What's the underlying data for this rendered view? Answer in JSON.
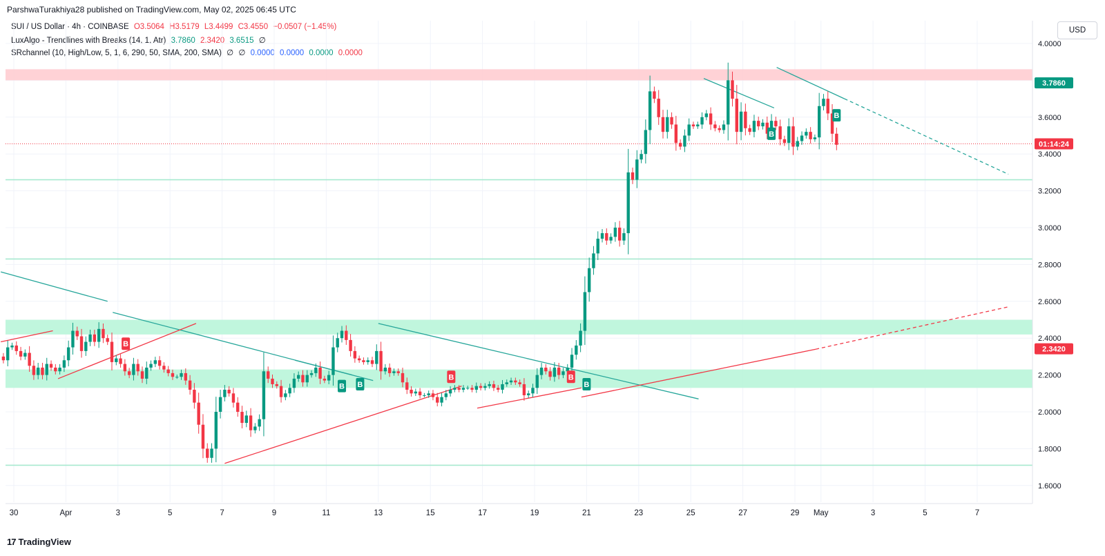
{
  "header": {
    "published": "ParshwaTurakhiya28 published on TradingView.com, May 02, 2025 06:45 UTC"
  },
  "legend": {
    "symbol": "SUI / US Dollar · 4h · COINBASE",
    "o": "O3.5064",
    "h": "H3.5179",
    "l": "L3.4499",
    "c": "C3.4550",
    "chg": "−0.0507 (−1.45%)",
    "ind1_name": "LuxAlgo - Trendlines with Breaks (14, 1, Atr)",
    "ind1_v1": "3.7860",
    "ind1_v2": "2.3420",
    "ind1_v3": "3.6515",
    "ind1_v4": "∅",
    "ind2_name": "SRchannel (10, High/Low, 5, 1, 6, 290, 50, SMA, 200, SMA)",
    "ind2_v1": "∅",
    "ind2_v2": "∅",
    "ind2_v3": "0.0000",
    "ind2_v4": "0.0000",
    "ind2_v5": "0.0000",
    "ind2_v6": "0.0000"
  },
  "toolbar": {
    "currency": "USD"
  },
  "footer": {
    "brand": "TradingView",
    "icon": "tradingview-logo-icon"
  },
  "colors": {
    "up": "#089981",
    "down": "#f23645",
    "zone_red": "#ffcdd2",
    "zone_green": "#b9f5d9",
    "line_green": "#a6e9cf"
  },
  "chart_data": {
    "type": "candlestick",
    "title": "SUI / US Dollar · 4h · COINBASE",
    "yrange": [
      1.5,
      4.05
    ],
    "y_ticks": [
      "4.0000",
      "3.8000",
      "3.6000",
      "3.4000",
      "3.2000",
      "3.0000",
      "2.8000",
      "2.6000",
      "2.4000",
      "2.2000",
      "2.0000",
      "1.8000",
      "1.6000"
    ],
    "x_ticks": [
      {
        "label": "30",
        "day": 30
      },
      {
        "label": "Apr",
        "day": 32
      },
      {
        "label": "3",
        "day": 34
      },
      {
        "label": "5",
        "day": 36
      },
      {
        "label": "7",
        "day": 38
      },
      {
        "label": "9",
        "day": 40
      },
      {
        "label": "11",
        "day": 42
      },
      {
        "label": "13",
        "day": 44
      },
      {
        "label": "15",
        "day": 46
      },
      {
        "label": "17",
        "day": 48
      },
      {
        "label": "19",
        "day": 50
      },
      {
        "label": "21",
        "day": 52
      },
      {
        "label": "23",
        "day": 54
      },
      {
        "label": "25",
        "day": 56
      },
      {
        "label": "27",
        "day": 58
      },
      {
        "label": "29",
        "day": 60
      },
      {
        "label": "May",
        "day": 61
      },
      {
        "label": "3",
        "day": 63
      },
      {
        "label": "5",
        "day": 65
      },
      {
        "label": "7",
        "day": 67
      }
    ],
    "x_axis_note": "Mar 30 = day 30, Apr 1 = day 32 (day 31 = Mar 31)",
    "price_tags": [
      {
        "value": 3.786,
        "text": "3.7860",
        "color": "#089981"
      },
      {
        "value": 3.455,
        "text": "01:14:24",
        "color": "#f23645"
      },
      {
        "value": 2.342,
        "text": "2.3420",
        "color": "#f23645"
      }
    ],
    "last_price": 3.455,
    "zones": [
      {
        "from": 3.8,
        "to": 3.86,
        "color": "#ffcdd2"
      },
      {
        "from": 2.42,
        "to": 2.5,
        "color": "#b9f5d9"
      },
      {
        "from": 2.13,
        "to": 2.23,
        "color": "#b9f5d9"
      }
    ],
    "support_lines": [
      3.26,
      2.83,
      1.71
    ],
    "trendlines": [
      {
        "d1": 29.5,
        "p1": 2.76,
        "d2": 33.6,
        "p2": 2.6,
        "color": "#26a69a",
        "dash": false
      },
      {
        "d1": 33.8,
        "p1": 2.54,
        "d2": 43.8,
        "p2": 2.17,
        "color": "#26a69a",
        "dash": false
      },
      {
        "d1": 40.8,
        "p1": 2.28,
        "d2": 43.0,
        "p2": 2.2,
        "color": "#26a69a",
        "dash": false
      },
      {
        "d1": 44.0,
        "p1": 2.48,
        "d2": 56.3,
        "p2": 2.07,
        "color": "#26a69a",
        "dash": false
      },
      {
        "d1": 56.5,
        "p1": 3.81,
        "d2": 59.2,
        "p2": 3.65,
        "color": "#26a69a",
        "dash": false
      },
      {
        "d1": 59.3,
        "p1": 3.87,
        "d2": 61.9,
        "p2": 3.7,
        "color": "#26a69a",
        "dash": false
      },
      {
        "d1": 61.9,
        "p1": 3.7,
        "d2": 68.2,
        "p2": 3.29,
        "color": "#26a69a",
        "dash": true
      },
      {
        "d1": 29.5,
        "p1": 2.38,
        "d2": 31.5,
        "p2": 2.44,
        "color": "#f23645",
        "dash": false
      },
      {
        "d1": 31.7,
        "p1": 2.18,
        "d2": 37.0,
        "p2": 2.48,
        "color": "#f23645",
        "dash": false
      },
      {
        "d1": 38.1,
        "p1": 1.72,
        "d2": 47.2,
        "p2": 2.14,
        "color": "#f23645",
        "dash": false
      },
      {
        "d1": 47.8,
        "p1": 2.02,
        "d2": 51.8,
        "p2": 2.13,
        "color": "#f23645",
        "dash": false
      },
      {
        "d1": 51.8,
        "p1": 2.08,
        "d2": 60.8,
        "p2": 2.34,
        "color": "#f23645",
        "dash": false
      },
      {
        "d1": 60.8,
        "p1": 2.34,
        "d2": 68.2,
        "p2": 2.57,
        "color": "#f23645",
        "dash": true
      }
    ],
    "markers": [
      {
        "label": "B",
        "day": 34.3,
        "price": 2.37,
        "color": "#f23645"
      },
      {
        "label": "B",
        "day": 42.6,
        "price": 2.14,
        "color": "#089981"
      },
      {
        "label": "B",
        "day": 43.3,
        "price": 2.15,
        "color": "#089981"
      },
      {
        "label": "B",
        "day": 46.8,
        "price": 2.19,
        "color": "#f23645"
      },
      {
        "label": "B",
        "day": 51.4,
        "price": 2.19,
        "color": "#f23645"
      },
      {
        "label": "B",
        "day": 52.0,
        "price": 2.15,
        "color": "#089981"
      },
      {
        "label": "B",
        "day": 59.1,
        "price": 3.51,
        "color": "#089981"
      },
      {
        "label": "B",
        "day": 61.6,
        "price": 3.61,
        "color": "#089981"
      }
    ],
    "closes": [
      2.28,
      2.35,
      2.36,
      2.33,
      2.3,
      2.32,
      2.25,
      2.2,
      2.24,
      2.2,
      2.26,
      2.24,
      2.22,
      2.24,
      2.28,
      2.35,
      2.44,
      2.41,
      2.33,
      2.38,
      2.42,
      2.38,
      2.45,
      2.4,
      2.38,
      2.27,
      2.29,
      2.26,
      2.22,
      2.2,
      2.26,
      2.22,
      2.18,
      2.24,
      2.26,
      2.28,
      2.25,
      2.23,
      2.21,
      2.19,
      2.19,
      2.21,
      2.17,
      2.12,
      2.05,
      1.93,
      1.8,
      1.75,
      1.8,
      2.0,
      2.08,
      2.12,
      2.1,
      2.05,
      2.0,
      1.94,
      1.98,
      1.9,
      1.92,
      1.96,
      2.22,
      2.18,
      2.15,
      2.14,
      2.08,
      2.1,
      2.13,
      2.18,
      2.2,
      2.16,
      2.2,
      2.21,
      2.24,
      2.18,
      2.17,
      2.2,
      2.35,
      2.4,
      2.44,
      2.39,
      2.33,
      2.29,
      2.28,
      2.27,
      2.28,
      2.26,
      2.33,
      2.22,
      2.24,
      2.21,
      2.22,
      2.21,
      2.16,
      2.12,
      2.1,
      2.11,
      2.09,
      2.09,
      2.1,
      2.08,
      2.05,
      2.08,
      2.1,
      2.12,
      2.13,
      2.12,
      2.13,
      2.13,
      2.12,
      2.14,
      2.13,
      2.14,
      2.15,
      2.13,
      2.12,
      2.15,
      2.16,
      2.17,
      2.16,
      2.15,
      2.09,
      2.1,
      2.13,
      2.2,
      2.24,
      2.22,
      2.19,
      2.24,
      2.2,
      2.22,
      2.24,
      2.31,
      2.36,
      2.44,
      2.65,
      2.78,
      2.86,
      2.94,
      2.97,
      2.93,
      2.95,
      3.0,
      2.93,
      2.97,
      3.3,
      3.26,
      3.37,
      3.4,
      3.53,
      3.74,
      3.7,
      3.6,
      3.52,
      3.6,
      3.56,
      3.46,
      3.44,
      3.5,
      3.56,
      3.55,
      3.56,
      3.6,
      3.62,
      3.56,
      3.54,
      3.53,
      3.56,
      3.8,
      3.7,
      3.52,
      3.63,
      3.54,
      3.52,
      3.58,
      3.55,
      3.57,
      3.51,
      3.58,
      3.55,
      3.48,
      3.46,
      3.55,
      3.44,
      3.47,
      3.5,
      3.52,
      3.48,
      3.49,
      3.66,
      3.7,
      3.62,
      3.51,
      3.45
    ]
  }
}
